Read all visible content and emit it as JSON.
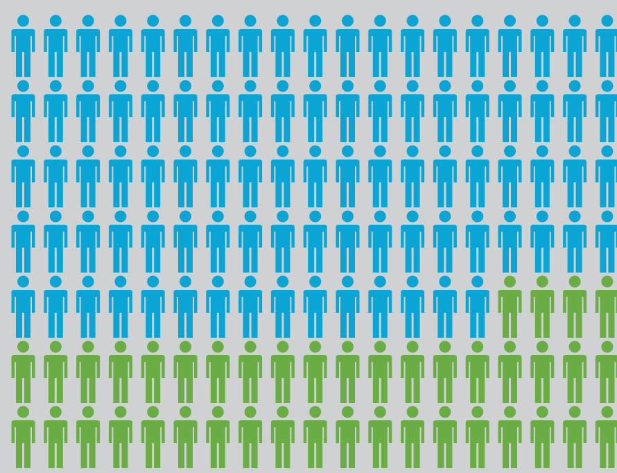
{
  "chart_data": {
    "type": "pictogram",
    "unit_icon": "person-icon",
    "grid": {
      "rows": 7,
      "columns": 19
    },
    "series": [
      {
        "color": "#0aa5d4",
        "count": 91
      },
      {
        "color": "#6aad45",
        "count": 42
      }
    ],
    "total": 133
  },
  "colors": {
    "background": "#d0d1d3"
  }
}
